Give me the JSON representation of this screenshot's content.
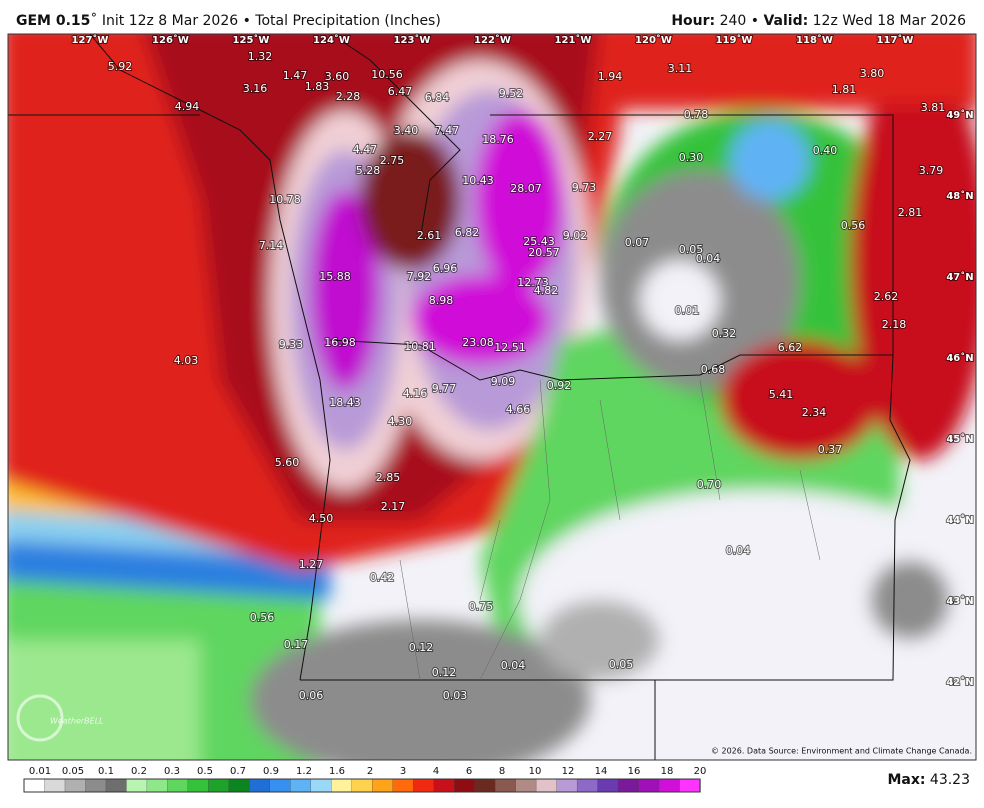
{
  "header": {
    "model": "GEM 0.15",
    "title": "˚ Init 12z 8 Mar 2026 • Total Precipitation (Inches)",
    "hour_label": "Hour:",
    "hour": " 240 • ",
    "valid_label": "Valid:",
    "valid": " 12z Wed 18 Mar 2026"
  },
  "map": {
    "amounts": [
      "5.92",
      "1.32",
      "1.47",
      "3.60",
      "10.56",
      "1.83",
      "3.16",
      "2.28",
      "6.47",
      "6.84",
      "9.52",
      "1.94",
      "3.11",
      "3.80",
      "1.81",
      "3.81",
      "4.94",
      "0.78",
      "3.40",
      "7.47",
      "18.76",
      "2.27",
      "4.47",
      "0.30",
      "0.40",
      "2.75",
      "5.28",
      "10.43",
      "28.07",
      "9.73",
      "3.79",
      "10.78",
      "2.81",
      "0.56",
      "2.61",
      "6.82",
      "25.43",
      "9.02",
      "0.07",
      "7.14",
      "20.57",
      "0.05",
      "0.04",
      "7.92",
      "6.96",
      "15.88",
      "12.73",
      "4.82",
      "2.62",
      "8.98",
      "0.01",
      "2.18",
      "0.32",
      "9.33",
      "4.03",
      "16.98",
      "10.81",
      "23.08",
      "12.51",
      "6.62",
      "0.68",
      "9.09",
      "0.92",
      "9.77",
      "4.16",
      "5.41",
      "18.43",
      "4.66",
      "2.34",
      "4.30",
      "0.37",
      "5.60",
      "2.85",
      "0.70",
      "2.17",
      "4.50",
      "0.04",
      "1.27",
      "0.42",
      "0.75",
      "0.56",
      "0.12",
      "0.17",
      "0.04",
      "0.05",
      "0.12",
      "0.06",
      "0.03"
    ],
    "longitudes": [
      "127˚W",
      "126˚W",
      "125˚W",
      "124˚W",
      "123˚W",
      "122˚W",
      "121˚W",
      "120˚W",
      "119˚W",
      "118˚W",
      "117˚W"
    ],
    "latitudes": [
      "49˚N",
      "48˚N",
      "47˚N",
      "46˚N",
      "45˚N",
      "44˚N",
      "43˚N",
      "42˚N"
    ],
    "logo": "WeatherBELL",
    "copyright": "© 2026. Data Source: Environment and Climate Change Canada."
  },
  "legend": {
    "labels": [
      "0.01",
      "0.05",
      "0.1",
      "0.2",
      "0.3",
      "0.5",
      "0.7",
      "0.9",
      "1.2",
      "1.6",
      "2",
      "3",
      "4",
      "6",
      "8",
      "10",
      "12",
      "14",
      "16",
      "18",
      "20"
    ],
    "colors": [
      "#ffffff",
      "#d9d9d9",
      "#b0b0b0",
      "#8c8c8c",
      "#6e6e6e",
      "#b8f5b0",
      "#8ee88a",
      "#5fd65e",
      "#34c23a",
      "#1da32a",
      "#0c8520",
      "#1f6fd6",
      "#3590f0",
      "#5eb3f5",
      "#9ad8f8",
      "#fff29a",
      "#ffd24d",
      "#ffa31a",
      "#ff6a0d",
      "#f02a10",
      "#c8101a",
      "#8e0d12",
      "#6a2a20",
      "#8a5a50",
      "#b08a85",
      "#e2c2c8",
      "#b79ad6",
      "#8e6ac8",
      "#6a3ab0",
      "#7a1a9a",
      "#a010b8",
      "#d010d8",
      "#ff33ff"
    ]
  },
  "footer": {
    "max_label": "Max:",
    "max": " 43.23"
  }
}
